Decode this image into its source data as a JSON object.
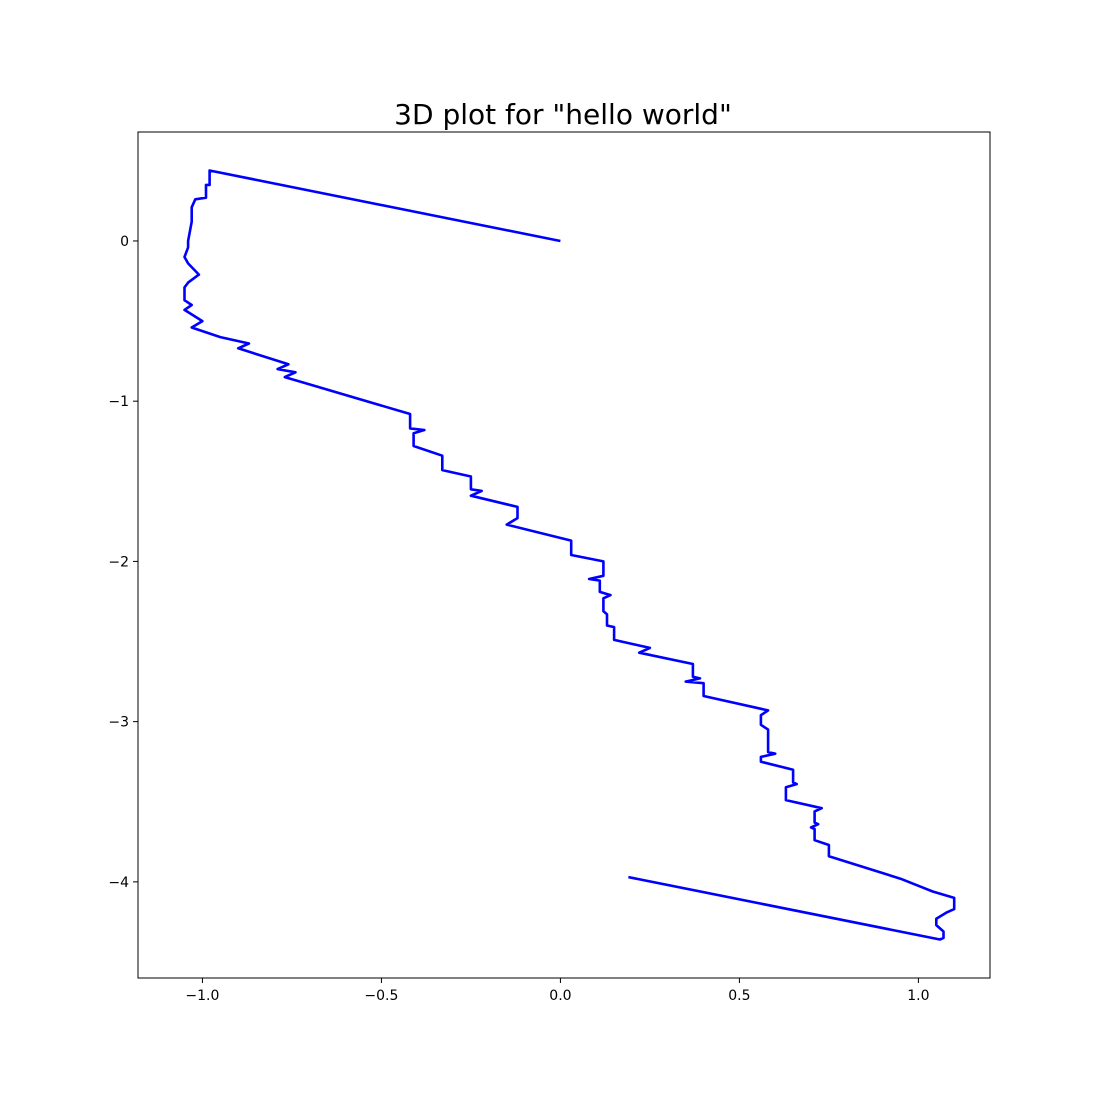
{
  "chart_data": {
    "type": "line",
    "title": "3D plot for \"hello world\"",
    "xlabel": "",
    "ylabel": "",
    "xlim": [
      -1.18,
      1.2
    ],
    "ylim": [
      -4.6,
      0.68
    ],
    "grid": false,
    "x_ticks": [
      {
        "value": -1.0,
        "label": "−1.0"
      },
      {
        "value": -0.5,
        "label": "−0.5"
      },
      {
        "value": 0.0,
        "label": "0.0"
      },
      {
        "value": 0.5,
        "label": "0.5"
      },
      {
        "value": 1.0,
        "label": "1.0"
      }
    ],
    "y_ticks": [
      {
        "value": 0,
        "label": "0"
      },
      {
        "value": -1,
        "label": "−1"
      },
      {
        "value": -2,
        "label": "−2"
      },
      {
        "value": -3,
        "label": "−3"
      },
      {
        "value": -4,
        "label": "−4"
      }
    ],
    "series": [
      {
        "color": "#0000ff",
        "points": [
          [
            0.0,
            0.0
          ],
          [
            -0.98,
            0.44
          ],
          [
            -0.98,
            0.35
          ],
          [
            -0.99,
            0.35
          ],
          [
            -0.99,
            0.27
          ],
          [
            -1.02,
            0.26
          ],
          [
            -1.03,
            0.21
          ],
          [
            -1.03,
            0.12
          ],
          [
            -1.04,
            0.0
          ],
          [
            -1.04,
            -0.04
          ],
          [
            -1.05,
            -0.1
          ],
          [
            -1.04,
            -0.14
          ],
          [
            -1.01,
            -0.21
          ],
          [
            -1.04,
            -0.26
          ],
          [
            -1.05,
            -0.29
          ],
          [
            -1.05,
            -0.37
          ],
          [
            -1.03,
            -0.4
          ],
          [
            -1.05,
            -0.43
          ],
          [
            -1.0,
            -0.5
          ],
          [
            -1.03,
            -0.54
          ],
          [
            -0.95,
            -0.6
          ],
          [
            -0.87,
            -0.64
          ],
          [
            -0.9,
            -0.67
          ],
          [
            -0.76,
            -0.77
          ],
          [
            -0.79,
            -0.8
          ],
          [
            -0.74,
            -0.82
          ],
          [
            -0.77,
            -0.85
          ],
          [
            -0.42,
            -1.08
          ],
          [
            -0.42,
            -1.17
          ],
          [
            -0.38,
            -1.18
          ],
          [
            -0.41,
            -1.2
          ],
          [
            -0.41,
            -1.28
          ],
          [
            -0.33,
            -1.34
          ],
          [
            -0.33,
            -1.43
          ],
          [
            -0.25,
            -1.47
          ],
          [
            -0.25,
            -1.55
          ],
          [
            -0.22,
            -1.56
          ],
          [
            -0.25,
            -1.59
          ],
          [
            -0.12,
            -1.66
          ],
          [
            -0.12,
            -1.73
          ],
          [
            -0.15,
            -1.77
          ],
          [
            0.03,
            -1.87
          ],
          [
            0.03,
            -1.96
          ],
          [
            0.12,
            -2.0
          ],
          [
            0.12,
            -2.09
          ],
          [
            0.08,
            -2.11
          ],
          [
            0.11,
            -2.12
          ],
          [
            0.11,
            -2.19
          ],
          [
            0.14,
            -2.21
          ],
          [
            0.12,
            -2.23
          ],
          [
            0.12,
            -2.31
          ],
          [
            0.13,
            -2.33
          ],
          [
            0.13,
            -2.4
          ],
          [
            0.15,
            -2.41
          ],
          [
            0.15,
            -2.49
          ],
          [
            0.25,
            -2.54
          ],
          [
            0.22,
            -2.57
          ],
          [
            0.37,
            -2.64
          ],
          [
            0.37,
            -2.72
          ],
          [
            0.39,
            -2.73
          ],
          [
            0.35,
            -2.75
          ],
          [
            0.4,
            -2.76
          ],
          [
            0.4,
            -2.84
          ],
          [
            0.58,
            -2.93
          ],
          [
            0.56,
            -2.96
          ],
          [
            0.56,
            -3.02
          ],
          [
            0.58,
            -3.05
          ],
          [
            0.58,
            -3.19
          ],
          [
            0.6,
            -3.2
          ],
          [
            0.56,
            -3.22
          ],
          [
            0.56,
            -3.25
          ],
          [
            0.65,
            -3.3
          ],
          [
            0.65,
            -3.38
          ],
          [
            0.66,
            -3.39
          ],
          [
            0.63,
            -3.41
          ],
          [
            0.63,
            -3.49
          ],
          [
            0.73,
            -3.54
          ],
          [
            0.71,
            -3.56
          ],
          [
            0.71,
            -3.63
          ],
          [
            0.72,
            -3.64
          ],
          [
            0.7,
            -3.66
          ],
          [
            0.71,
            -3.67
          ],
          [
            0.71,
            -3.74
          ],
          [
            0.75,
            -3.77
          ],
          [
            0.75,
            -3.84
          ],
          [
            0.95,
            -3.98
          ],
          [
            1.04,
            -4.06
          ],
          [
            1.1,
            -4.1
          ],
          [
            1.1,
            -4.17
          ],
          [
            1.08,
            -4.19
          ],
          [
            1.05,
            -4.23
          ],
          [
            1.05,
            -4.27
          ],
          [
            1.07,
            -4.31
          ],
          [
            1.07,
            -4.35
          ],
          [
            1.06,
            -4.36
          ],
          [
            0.19,
            -3.97
          ]
        ]
      }
    ]
  }
}
